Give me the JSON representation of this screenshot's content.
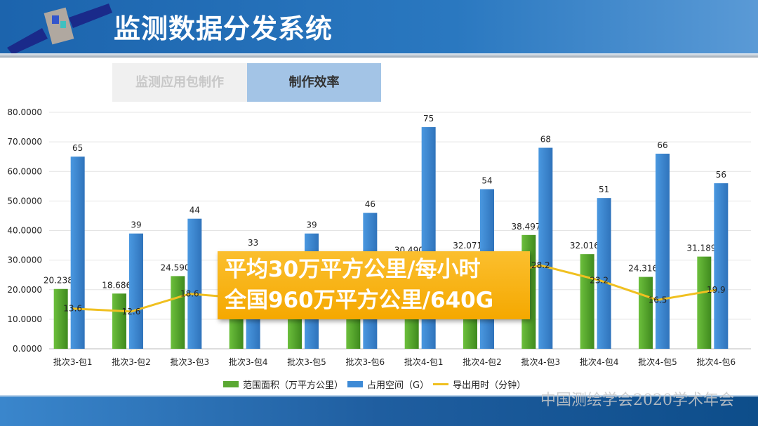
{
  "header": {
    "title": "监测数据分发系统"
  },
  "tabs": [
    {
      "label": "监测应用包制作",
      "active": false
    },
    {
      "label": "制作效率",
      "active": true
    }
  ],
  "callout": {
    "line1": "平均30万平方公里/每小时",
    "line2": "全国960万平方公里/640G"
  },
  "footer": {
    "watermark": "中国测绘学会2020学术年会"
  },
  "colors": {
    "green": "#5aa832",
    "blue": "#3d8ad6",
    "line": "#f0c020",
    "callout": "#f9b415",
    "header": "#1c64ad"
  },
  "chart_data": {
    "type": "bar",
    "categories": [
      "批次3-包1",
      "批次3-包2",
      "批次3-包3",
      "批次3-包4",
      "批次3-包5",
      "批次3-包6",
      "批次4-包1",
      "批次4-包2",
      "批次4-包3",
      "批次4-包4",
      "批次4-包5",
      "批次4-包6"
    ],
    "ylim": [
      0,
      80
    ],
    "yticks": [
      "0.0000",
      "10.0000",
      "20.0000",
      "30.0000",
      "40.0000",
      "50.0000",
      "60.0000",
      "70.0000",
      "80.0000"
    ],
    "grid": true,
    "legend": "bottom",
    "series": [
      {
        "name": "范围面积（万平方公里）",
        "type": "bar",
        "color": "#5aa832",
        "values": [
          20.238,
          18.6864,
          24.5909,
          22.0,
          24.0,
          26.0,
          30.4908,
          32.0712,
          38.4978,
          32.0168,
          24.316,
          31.1891
        ],
        "labels": [
          "20.2380",
          "18.6864",
          "24.5909",
          "",
          "",
          "",
          "30.4908",
          "32.0712",
          "38.4978",
          "32.0168",
          "24.3160",
          "31.1891"
        ]
      },
      {
        "name": "占用空间（G）",
        "type": "bar",
        "color": "#3d8ad6",
        "values": [
          65,
          39,
          44,
          33,
          39,
          46,
          75,
          54,
          68,
          51,
          66,
          56
        ],
        "labels": [
          "65",
          "39",
          "44",
          "33",
          "39",
          "46",
          "75",
          "54",
          "68",
          "51",
          "66",
          "56"
        ]
      },
      {
        "name": "导出用时（分钟）",
        "type": "line",
        "color": "#f0c020",
        "values": [
          13.6,
          12.6,
          18.6,
          17.0,
          18.0,
          20.0,
          22.0,
          24.0,
          28.2,
          23.2,
          16.5,
          19.9
        ],
        "labels": [
          "13.6",
          "12.6",
          "18.6",
          "",
          "",
          "",
          "",
          "",
          "28.2",
          "23.2",
          "16.5",
          "19.9"
        ]
      }
    ]
  }
}
